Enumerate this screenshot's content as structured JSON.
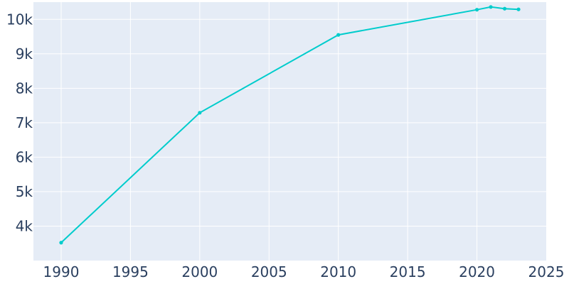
{
  "chart_data": {
    "type": "line",
    "title": "",
    "xlabel": "",
    "ylabel": "",
    "xlim": [
      1988,
      2025
    ],
    "ylim": [
      3000,
      10500
    ],
    "grid": true,
    "x_ticks": [
      1990,
      1995,
      2000,
      2005,
      2010,
      2015,
      2020,
      2025
    ],
    "x_tick_labels": [
      "1990",
      "1995",
      "2000",
      "2005",
      "2010",
      "2015",
      "2020",
      "2025"
    ],
    "y_ticks": [
      4000,
      5000,
      6000,
      7000,
      8000,
      9000,
      10000
    ],
    "y_tick_labels": [
      "4k",
      "5k",
      "6k",
      "7k",
      "8k",
      "9k",
      "10k"
    ],
    "series": [
      {
        "x": [
          1990,
          2000,
          2010,
          2020,
          2021,
          2022,
          2023
        ],
        "values": [
          3520,
          7290,
          9550,
          10280,
          10360,
          10310,
          10290
        ],
        "color": "#00cccc"
      }
    ]
  },
  "colors": {
    "plot_background": "#e5ecf6",
    "gridline": "#ffffff",
    "tick_text": "#2a3f5f"
  }
}
